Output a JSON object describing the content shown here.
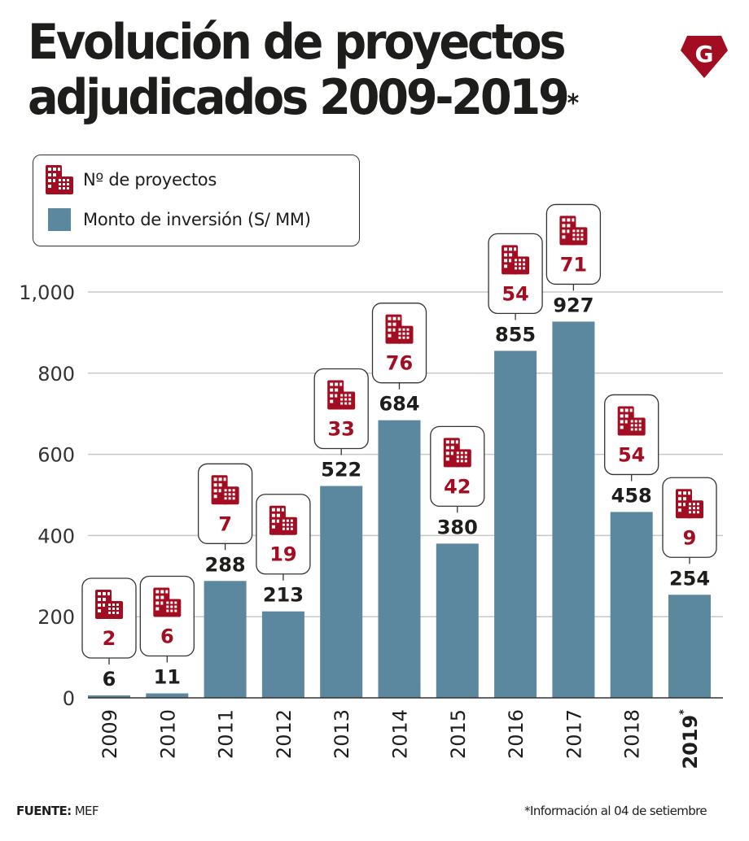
{
  "header": {
    "title_line1": "Evolución de proyectos",
    "title_line2": "adjudicados 2009-2019",
    "title_asterisk": "*",
    "logo_letter": "G"
  },
  "colors": {
    "bar": "#5b879f",
    "accent": "#a30d22",
    "text": "#1d1d1b",
    "grid": "#c8c8c8"
  },
  "legend": {
    "items": [
      {
        "icon": "buildings-icon",
        "label": "Nº  de proyectos"
      },
      {
        "icon": "square-swatch",
        "label": "Monto de inversión (S/ MM)"
      }
    ]
  },
  "chart_data": {
    "type": "bar",
    "title": "Evolución de proyectos adjudicados 2009-2019*",
    "xlabel": "",
    "ylabel": "",
    "ylim": [
      0,
      1000
    ],
    "yticks": [
      0,
      200,
      400,
      600,
      800,
      1000
    ],
    "ytick_labels": [
      "0",
      "200",
      "400",
      "600",
      "800",
      "1,000"
    ],
    "grid": true,
    "legend_position": "top-left",
    "categories": [
      "2009",
      "2010",
      "2011",
      "2012",
      "2013",
      "2014",
      "2015",
      "2016",
      "2017",
      "2018",
      "2019"
    ],
    "category_suffix": {
      "2019": "*"
    },
    "series": [
      {
        "name": "Monto de inversión (S/ MM)",
        "type": "bar",
        "values": [
          6,
          11,
          288,
          213,
          522,
          684,
          380,
          855,
          927,
          458,
          254
        ]
      },
      {
        "name": "Nº de proyectos",
        "type": "annotation",
        "values": [
          2,
          6,
          7,
          19,
          33,
          76,
          42,
          54,
          71,
          54,
          9
        ]
      }
    ]
  },
  "footer": {
    "source_label": "FUENTE:",
    "source_value": "MEF",
    "note": "*Información al 04 de setiembre"
  }
}
